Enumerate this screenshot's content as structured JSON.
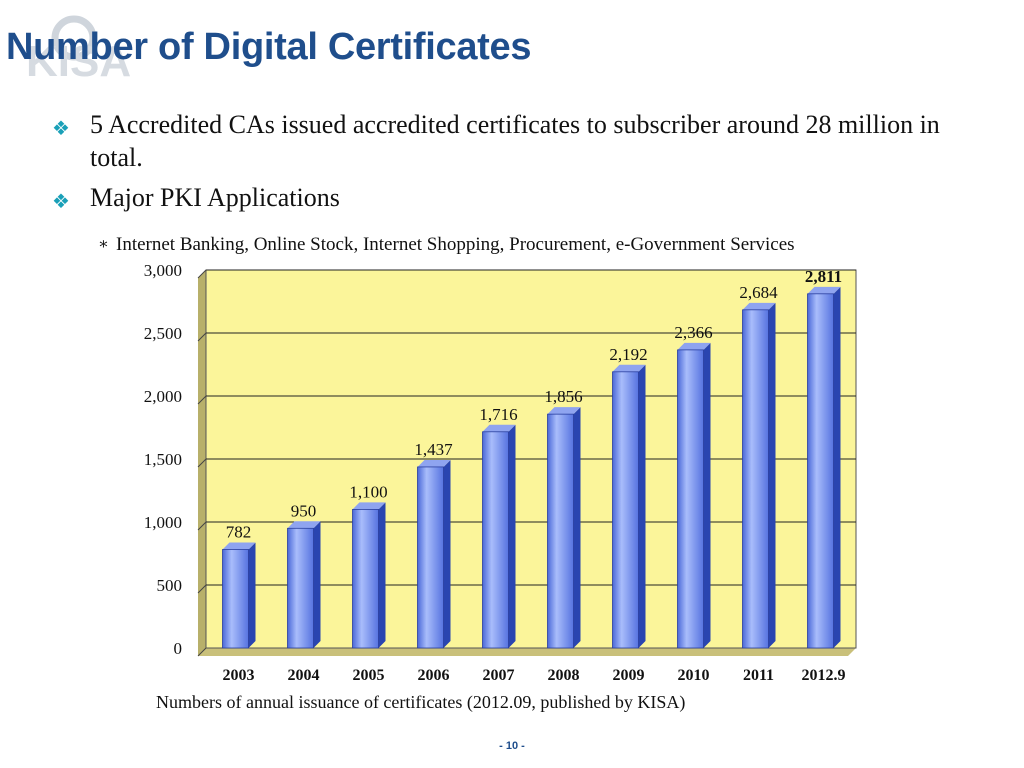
{
  "slide": {
    "title": "Number of Digital Certificates",
    "bullets": [
      "5 Accredited CAs issued accredited certificates to subscriber around 28 million in total.",
      "Major PKI Applications"
    ],
    "sub_bullet": "Internet Banking, Online Stock, Internet Shopping, Procurement, e-Government Services",
    "caption": "Numbers of annual issuance of certificates (2012.09, published by KISA)",
    "page_number": "- 10 -"
  },
  "icons": {
    "bullet": "diamond-bullet-icon",
    "sub_bullet": "asterisk-bullet-icon",
    "logo": "kisa-logo-watermark"
  },
  "colors": {
    "title": "#1f4e8c",
    "bullet": "#1aa0b8",
    "plot_bg": "#fbf59a",
    "bar": "#5f80e6",
    "bar_side": "#2a45b0"
  },
  "chart_data": {
    "type": "bar",
    "categories": [
      "2003",
      "2004",
      "2005",
      "2006",
      "2007",
      "2008",
      "2009",
      "2010",
      "2011",
      "2012.9"
    ],
    "values": [
      782,
      950,
      1100,
      1437,
      1716,
      1856,
      2192,
      2366,
      2684,
      2811
    ],
    "value_labels": [
      "782",
      "950",
      "1,100",
      "1,437",
      "1,716",
      "1,856",
      "2,192",
      "2,366",
      "2,684",
      "2,811"
    ],
    "y_tick_labels": [
      "0",
      "500",
      "1,000",
      "1,500",
      "2,000",
      "2,500",
      "3,000"
    ],
    "y_ticks": [
      0,
      500,
      1000,
      1500,
      2000,
      2500,
      3000
    ],
    "ylim": [
      0,
      3000
    ],
    "grid": true,
    "legend": "none",
    "bold_last_label": true
  }
}
